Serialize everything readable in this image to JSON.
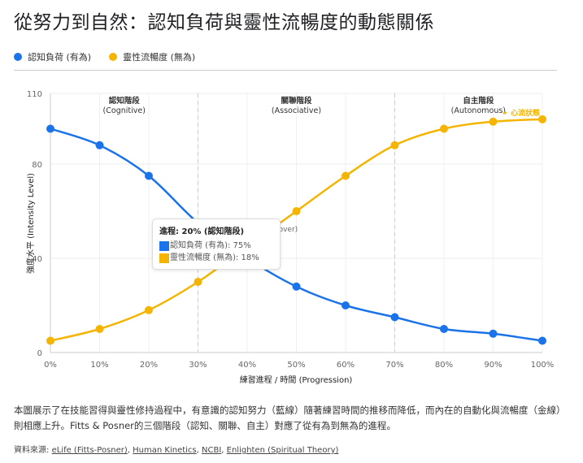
{
  "title": "從努力到自然：認知負荷與靈性流暢度的動態關係",
  "legend": [
    {
      "label": "認知負荷 (有為)",
      "color": "#1a73e8"
    },
    {
      "label": "靈性流暢度 (無為)",
      "color": "#f4b400"
    }
  ],
  "chart_data": {
    "type": "line",
    "x": [
      "0%",
      "10%",
      "20%",
      "30%",
      "40%",
      "50%",
      "60%",
      "70%",
      "80%",
      "90%",
      "100%"
    ],
    "series": [
      {
        "name": "認知負荷 (有為)",
        "color": "#1a73e8",
        "values": [
          95,
          88,
          75,
          55,
          40,
          28,
          20,
          15,
          10,
          8,
          5
        ]
      },
      {
        "name": "靈性流暢度 (無為)",
        "color": "#f4b400",
        "values": [
          5,
          10,
          18,
          30,
          45,
          60,
          75,
          88,
          95,
          98,
          99
        ]
      }
    ],
    "xlabel": "練習進程 / 時間 (Progression)",
    "ylabel": "強度水平 (Intensity Level)",
    "ylim": [
      0,
      110
    ],
    "yticks": [
      0,
      40,
      80,
      110
    ],
    "grid": true,
    "phase_dividers": [
      "30%",
      "70%"
    ],
    "phases": [
      {
        "name": "認知階段",
        "en": "(Cognitive)"
      },
      {
        "name": "關聯階段",
        "en": "(Associative)"
      },
      {
        "name": "自主階段",
        "en": "(Autonomous)"
      }
    ],
    "annotations": [
      {
        "text": "✦ 心流狀態",
        "at": "100%"
      },
      {
        "text": "(Crossover)",
        "at": "35%"
      }
    ]
  },
  "tooltip": {
    "title": "進程: 20% (認知階段)",
    "rows": [
      "認知負荷 (有為): 75%",
      "靈性流暢度 (無為): 18%"
    ]
  },
  "description": "本圖展示了在技能習得與靈性修持過程中，有意識的認知努力（藍線）隨著練習時間的推移而降低，而內在的自動化與流暢度（金線）則相應上升。Fitts & Posner的三個階段（認知、關聯、自主）對應了從有為到無為的進程。",
  "sources": {
    "label": "資料來源:",
    "links": [
      "eLife (Fitts-Posner)",
      "Human Kinetics",
      "NCBI",
      "Enlighten (Spiritual Theory)"
    ]
  }
}
